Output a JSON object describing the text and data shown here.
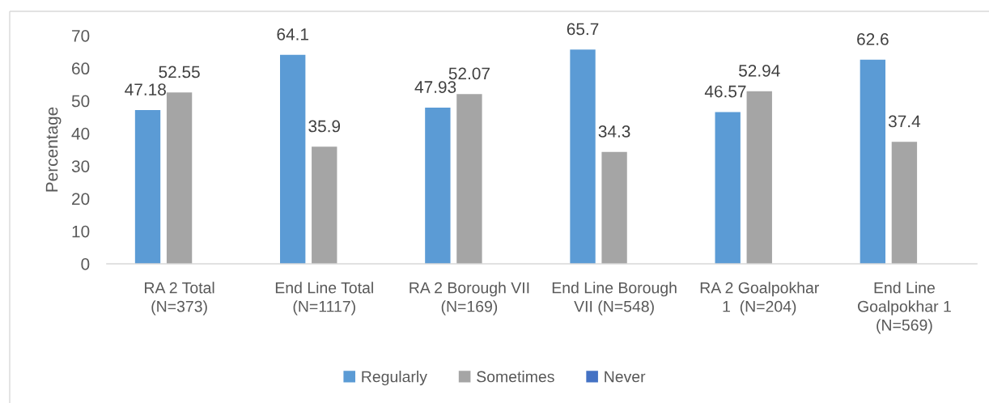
{
  "chart_data": {
    "type": "bar",
    "ylabel": "Percentage",
    "categories": [
      "RA 2 Total\n(N=373)",
      "End Line Total\n(N=1117)",
      "RA 2 Borough VII\n(N=169)",
      "End Line Borough\nVII (N=548)",
      "RA 2 Goalpokhar\n1  (N=204)",
      "End Line\nGoalpokhar 1\n(N=569)"
    ],
    "series": [
      {
        "name": "Regularly",
        "color": "#5b9bd5",
        "values": [
          47.18,
          64.1,
          47.93,
          65.7,
          46.57,
          62.6
        ]
      },
      {
        "name": "Sometimes",
        "color": "#a5a5a5",
        "values": [
          52.55,
          35.9,
          52.07,
          34.3,
          52.94,
          37.4
        ]
      },
      {
        "name": "Never",
        "color": "#4472c4",
        "values": [
          null,
          null,
          null,
          null,
          null,
          null
        ]
      }
    ],
    "ylim": [
      0,
      70
    ],
    "yticks": [
      0,
      10,
      20,
      30,
      40,
      50,
      60,
      70
    ],
    "legend": "bottom",
    "data_labels": true
  }
}
